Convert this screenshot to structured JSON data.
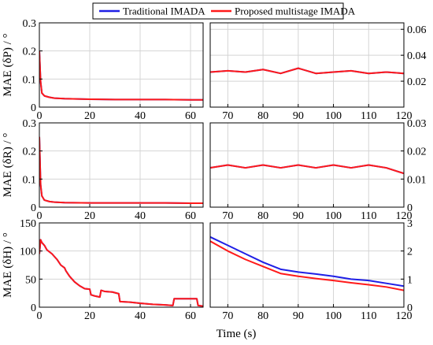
{
  "colors": {
    "traditional": "#1f1fe6",
    "proposed": "#ff1a1a",
    "grid": "#d4d4d4",
    "frame": "#000000"
  },
  "legend": {
    "entries": [
      {
        "label": "Traditional IMADA",
        "color": "#1f1fe6"
      },
      {
        "label": "Proposed multistage IMADA",
        "color": "#ff1a1a"
      }
    ],
    "placement": "top-center"
  },
  "xlabel": "Time (s)",
  "chart_data": [
    {
      "type": "line",
      "panel": "P-left",
      "ylabel": "MAE (δP) / °",
      "xlim": [
        0,
        65
      ],
      "ylim": [
        0,
        0.3
      ],
      "xticks": [
        "0",
        "20",
        "40",
        "60"
      ],
      "yticks": [
        "0",
        "0.1",
        "0.2",
        "0.3"
      ],
      "grid": true,
      "series": [
        {
          "name": "Traditional IMADA",
          "x": [
            0,
            0.5,
            1,
            2,
            4,
            6,
            10,
            20,
            30,
            40,
            50,
            60,
            65
          ],
          "y": [
            0.2,
            0.09,
            0.05,
            0.04,
            0.035,
            0.032,
            0.03,
            0.028,
            0.027,
            0.027,
            0.027,
            0.026,
            0.026
          ]
        },
        {
          "name": "Proposed multistage IMADA",
          "x": [
            0,
            0.5,
            1,
            2,
            4,
            6,
            10,
            20,
            30,
            40,
            50,
            60,
            65
          ],
          "y": [
            0.2,
            0.09,
            0.05,
            0.04,
            0.035,
            0.032,
            0.03,
            0.028,
            0.027,
            0.027,
            0.027,
            0.026,
            0.026
          ]
        }
      ]
    },
    {
      "type": "line",
      "panel": "P-right",
      "xlim": [
        65,
        120
      ],
      "ylim": [
        0,
        0.065
      ],
      "xticks": [
        "70",
        "80",
        "90",
        "100",
        "110",
        "120"
      ],
      "yticks": [
        "0.02",
        "0.04",
        "0.06"
      ],
      "grid": true,
      "series": [
        {
          "name": "Traditional IMADA",
          "x": [
            65,
            70,
            75,
            80,
            85,
            90,
            95,
            100,
            105,
            110,
            115,
            120
          ],
          "y": [
            0.027,
            0.028,
            0.027,
            0.029,
            0.026,
            0.03,
            0.026,
            0.027,
            0.028,
            0.026,
            0.027,
            0.026
          ]
        },
        {
          "name": "Proposed multistage IMADA",
          "x": [
            65,
            70,
            75,
            80,
            85,
            90,
            95,
            100,
            105,
            110,
            115,
            120
          ],
          "y": [
            0.027,
            0.028,
            0.027,
            0.029,
            0.026,
            0.03,
            0.026,
            0.027,
            0.028,
            0.026,
            0.027,
            0.026
          ]
        }
      ]
    },
    {
      "type": "line",
      "panel": "R-left",
      "ylabel": "MAE (δR) / °",
      "xlim": [
        0,
        65
      ],
      "ylim": [
        0,
        0.3
      ],
      "xticks": [
        "0",
        "20",
        "40",
        "60"
      ],
      "yticks": [
        "0",
        "0.1",
        "0.2",
        "0.3"
      ],
      "grid": true,
      "series": [
        {
          "name": "Traditional IMADA",
          "x": [
            0,
            0.5,
            1,
            2,
            4,
            6,
            10,
            20,
            30,
            40,
            50,
            60,
            65
          ],
          "y": [
            0.25,
            0.08,
            0.04,
            0.025,
            0.02,
            0.018,
            0.016,
            0.015,
            0.015,
            0.015,
            0.015,
            0.014,
            0.014
          ]
        },
        {
          "name": "Proposed multistage IMADA",
          "x": [
            0,
            0.5,
            1,
            2,
            4,
            6,
            10,
            20,
            30,
            40,
            50,
            60,
            65
          ],
          "y": [
            0.25,
            0.08,
            0.04,
            0.025,
            0.02,
            0.018,
            0.016,
            0.015,
            0.015,
            0.015,
            0.015,
            0.014,
            0.014
          ]
        }
      ]
    },
    {
      "type": "line",
      "panel": "R-right",
      "xlim": [
        65,
        120
      ],
      "ylim": [
        0,
        0.03
      ],
      "xticks": [
        "70",
        "80",
        "90",
        "100",
        "110",
        "120"
      ],
      "yticks": [
        "0",
        "0.01",
        "0.02",
        "0.03"
      ],
      "grid": true,
      "series": [
        {
          "name": "Traditional IMADA",
          "x": [
            65,
            70,
            75,
            80,
            85,
            90,
            95,
            100,
            105,
            110,
            115,
            120
          ],
          "y": [
            0.014,
            0.015,
            0.014,
            0.015,
            0.014,
            0.015,
            0.014,
            0.015,
            0.014,
            0.015,
            0.014,
            0.012
          ]
        },
        {
          "name": "Proposed multistage IMADA",
          "x": [
            65,
            70,
            75,
            80,
            85,
            90,
            95,
            100,
            105,
            110,
            115,
            120
          ],
          "y": [
            0.014,
            0.015,
            0.014,
            0.015,
            0.014,
            0.015,
            0.014,
            0.015,
            0.014,
            0.015,
            0.014,
            0.012
          ]
        }
      ]
    },
    {
      "type": "line",
      "panel": "H-left",
      "ylabel": "MAE (δH) / °",
      "xlim": [
        0,
        65
      ],
      "ylim": [
        0,
        150
      ],
      "xticks": [
        "0",
        "20",
        "40",
        "60"
      ],
      "yticks": [
        "0",
        "50",
        "100",
        "150"
      ],
      "grid": true,
      "series": [
        {
          "name": "Traditional IMADA",
          "x": [
            0,
            0.5,
            1,
            2,
            3,
            5,
            7,
            8.5,
            10,
            10.5,
            12,
            14,
            16,
            18,
            20,
            20.5,
            22,
            24,
            24.5,
            26,
            29,
            31.5,
            32,
            36,
            40,
            45,
            50,
            53,
            53.5,
            60,
            62.5,
            63,
            65
          ],
          "y": [
            95,
            120,
            115,
            110,
            102,
            95,
            85,
            75,
            70,
            65,
            55,
            45,
            38,
            33,
            32,
            22,
            20,
            18,
            30,
            28,
            27,
            24,
            10,
            9,
            7,
            5,
            4,
            3,
            15,
            15,
            15,
            3,
            2
          ]
        },
        {
          "name": "Proposed multistage IMADA",
          "x": [
            0,
            0.5,
            1,
            2,
            3,
            5,
            7,
            8.5,
            10,
            10.5,
            12,
            14,
            16,
            18,
            20,
            20.5,
            22,
            24,
            24.5,
            26,
            29,
            31.5,
            32,
            36,
            40,
            45,
            50,
            53,
            53.5,
            60,
            62.5,
            63,
            65
          ],
          "y": [
            95,
            120,
            115,
            110,
            102,
            95,
            85,
            75,
            70,
            65,
            55,
            45,
            38,
            33,
            32,
            22,
            20,
            18,
            30,
            28,
            27,
            24,
            10,
            9,
            7,
            5,
            4,
            3,
            15,
            15,
            15,
            3,
            2
          ]
        }
      ]
    },
    {
      "type": "line",
      "panel": "H-right",
      "xlim": [
        65,
        120
      ],
      "ylim": [
        0,
        3
      ],
      "xticks": [
        "70",
        "80",
        "90",
        "100",
        "110",
        "120"
      ],
      "yticks": [
        "0",
        "1",
        "2",
        "3"
      ],
      "grid": true,
      "series": [
        {
          "name": "Traditional IMADA",
          "x": [
            65,
            70,
            75,
            80,
            85,
            90,
            95,
            100,
            105,
            110,
            115,
            120
          ],
          "y": [
            2.5,
            2.2,
            1.9,
            1.6,
            1.35,
            1.25,
            1.18,
            1.1,
            1.0,
            0.95,
            0.85,
            0.75
          ]
        },
        {
          "name": "Proposed multistage IMADA",
          "x": [
            65,
            70,
            75,
            80,
            85,
            90,
            95,
            100,
            105,
            110,
            115,
            120
          ],
          "y": [
            2.35,
            2.0,
            1.7,
            1.45,
            1.2,
            1.1,
            1.02,
            0.95,
            0.87,
            0.8,
            0.72,
            0.6
          ]
        }
      ]
    }
  ]
}
